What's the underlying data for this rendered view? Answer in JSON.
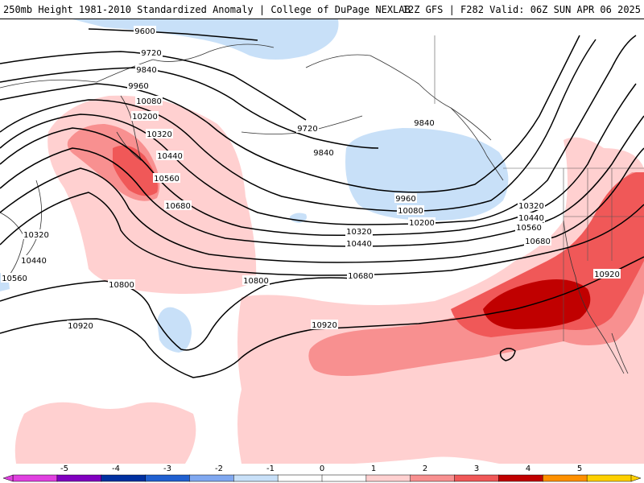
{
  "header": {
    "left_title": "250mb Height 1981-2010 Standardized Anomaly | College of DuPage NEXLAB",
    "right_title": "12Z GFS | F282 Valid: 06Z SUN APR 06 2025"
  },
  "colorbar": {
    "ticks": [
      "-5",
      "-4",
      "-3",
      "-2",
      "-1",
      "0",
      "1",
      "2",
      "3",
      "4",
      "5"
    ],
    "colors": [
      "#e040e0",
      "#8000c0",
      "#0030a0",
      "#2060d0",
      "#80a8f0",
      "#c8e0f8",
      "#ffffff",
      "#ffffff",
      "#ffd0d0",
      "#f89090",
      "#f05858",
      "#c00000",
      "#ff9000",
      "#ffd000"
    ]
  },
  "contours": {
    "labels": [
      "9600",
      "9720",
      "9840",
      "9960",
      "10080",
      "10200",
      "10320",
      "10440",
      "10560",
      "10680",
      "10800",
      "10920",
      "9720",
      "9840",
      "9840",
      "9960",
      "10080",
      "10200",
      "10320",
      "10440",
      "10680",
      "10800",
      "10920",
      "10320",
      "10440",
      "10560",
      "10680",
      "10920",
      "10320",
      "10440",
      "10560"
    ]
  }
}
